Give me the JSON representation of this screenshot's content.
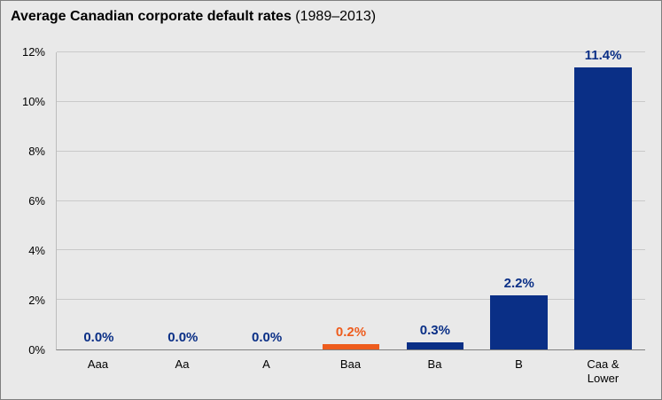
{
  "title": {
    "main": "Average Canadian corporate default rates",
    "period": "(1989–2013)"
  },
  "colors": {
    "bar": "#0a2f86",
    "highlight": "#ee5c1d",
    "background": "#e9e9e9",
    "grid": "#c9c9c9",
    "axis": "#808080",
    "text": "#000000"
  },
  "chart_data": {
    "type": "bar",
    "title": "Average Canadian corporate default rates (1989–2013)",
    "categories": [
      "Aaa",
      "Aa",
      "A",
      "Baa",
      "Ba",
      "B",
      "Caa &\nLower"
    ],
    "values": [
      0.0,
      0.0,
      0.0,
      0.2,
      0.3,
      2.2,
      11.4
    ],
    "value_labels": [
      "0.0%",
      "0.0%",
      "0.0%",
      "0.2%",
      "0.3%",
      "2.2%",
      "11.4%"
    ],
    "highlight_index": 3,
    "xlabel": "",
    "ylabel": "",
    "ylim": [
      0,
      12
    ],
    "ytick_values": [
      0,
      2,
      4,
      6,
      8,
      10,
      12
    ],
    "ytick_labels": [
      "0%",
      "2%",
      "4%",
      "6%",
      "8%",
      "10%",
      "12%"
    ],
    "grid": true,
    "legend": "none"
  }
}
